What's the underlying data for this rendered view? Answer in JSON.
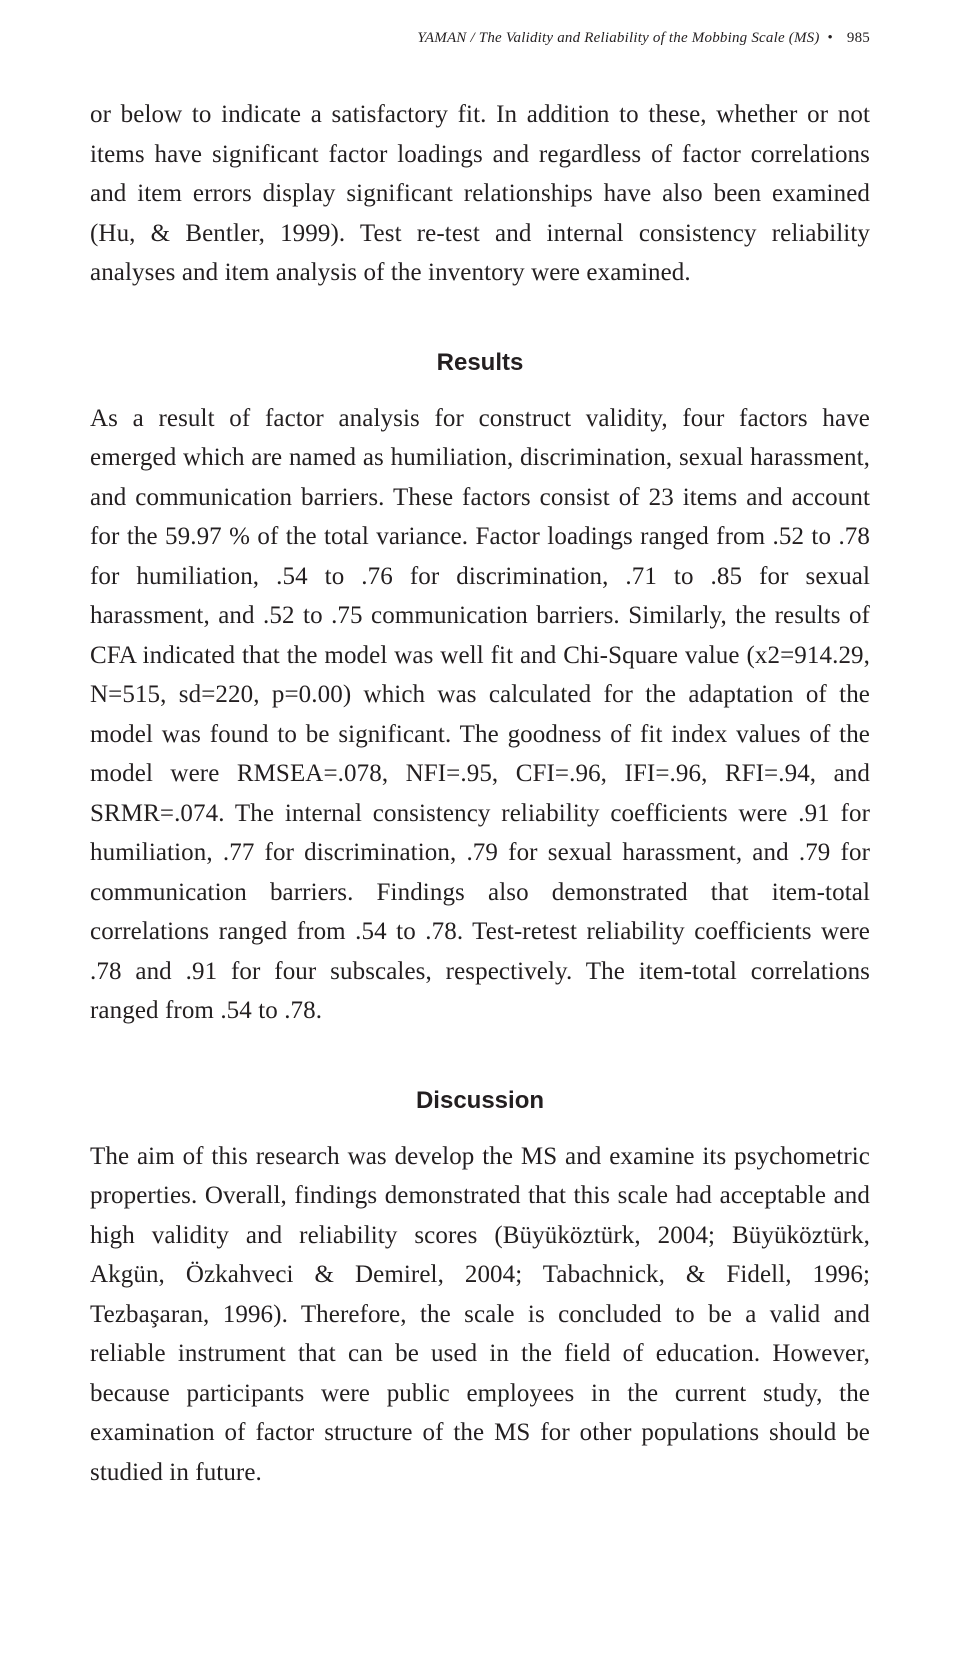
{
  "header": {
    "author": "YAMAN /",
    "title": "The Validity and Reliability of the Mobbing Scale (MS)",
    "bullet": "•",
    "page": "985"
  },
  "paragraphs": {
    "intro": "or below to indicate a satisfactory fit. In addition to these, whether or not items have significant factor loadings and regardless of factor correlations and item errors display significant relationships have also been examined (Hu, & Bentler, 1999). Test re-test and internal consistency reliability analyses and item analysis of the inventory were examined.",
    "results": "As a result of factor analysis for construct validity, four factors have emerged which are named as humiliation, discrimination, sexual harassment, and communication barriers. These factors consist of 23 items and account for the 59.97 % of the total variance. Factor loadings ranged from .52 to .78 for humiliation, .54 to .76 for discrimination, .71 to .85 for sexual harassment, and .52 to .75 communication barriers. Similarly, the results of CFA indicated that the model was well fit and Chi-Square value (x2=914.29, N=515, sd=220, p=0.00) which was calculated for the adaptation of the model was found to be significant. The goodness of fit index values of the model were RMSEA=.078, NFI=.95, CFI=.96, IFI=.96, RFI=.94, and SRMR=.074. The internal consistency reliability coefficients were .91 for humiliation, .77 for discrimination, .79 for sexual harassment, and .79 for communication barriers. Findings also demonstrated that item-total correlations ranged from .54 to .78. Test-retest reliability coefficients were .78 and .91 for four subscales, respectively. The item-total correlations ranged from .54 to .78.",
    "discussion": "The aim of this research was develop the MS and examine its psychometric properties. Overall, findings demonstrated that this scale had acceptable and high validity and reliability scores (Büyüköztürk, 2004; Büyüköztürk, Akgün, Özkahveci & Demirel, 2004; Tabachnick, & Fidell, 1996; Tezbaşaran, 1996). Therefore, the scale is concluded to be a valid and reliable instrument that can be used in the field of education. However, because participants were public employees in the current study, the examination of factor structure of the MS for other populations should be studied in future."
  },
  "headings": {
    "results": "Results",
    "discussion": "Discussion"
  }
}
